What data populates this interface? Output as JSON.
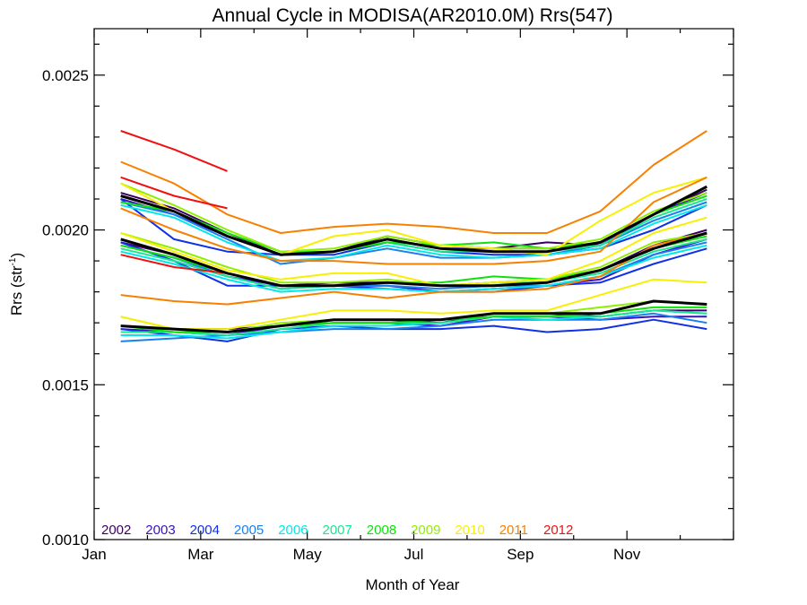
{
  "chart_data": {
    "type": "line",
    "title": "Annual Cycle in MODISA(AR2010.0M) Rrs(547)",
    "xlabel": "Month of Year",
    "ylabel": {
      "base": "Rrs (str",
      "sup": "-1",
      "close": ")"
    },
    "x_month_ticks": [
      "Jan",
      "Mar",
      "May",
      "Jul",
      "Sep",
      "Nov"
    ],
    "x_month_values": [
      1,
      3,
      5,
      7,
      9,
      11
    ],
    "xlim": [
      1,
      13
    ],
    "ylim": [
      0.001,
      0.00265
    ],
    "y_ticks": [
      0.001,
      0.0015,
      0.002,
      0.0025
    ],
    "y_tick_labels": [
      "0.0010",
      "0.0015",
      "0.0020",
      "0.0025"
    ],
    "x": [
      1.5,
      2.5,
      3.5,
      4.5,
      5.5,
      6.5,
      7.5,
      8.5,
      9.5,
      10.5,
      11.5,
      12.5
    ],
    "legend": {
      "placement": "bottom-left"
    },
    "series": [
      {
        "name": "2002",
        "color": "#3a0060",
        "values": [
          [
            0.00212,
            0.00207,
            0.00199,
            0.00192,
            0.00193,
            0.00198,
            0.00195,
            0.00194,
            0.00196,
            0.00195,
            0.00205,
            0.00213
          ],
          [
            0.00196,
            0.00192,
            0.00186,
            0.00182,
            0.00183,
            0.00183,
            0.00182,
            0.00183,
            0.00184,
            0.00187,
            0.00195,
            0.002
          ],
          [
            0.00169,
            0.00168,
            0.00168,
            0.00169,
            0.00171,
            0.00171,
            0.0017,
            0.00173,
            0.00173,
            0.00172,
            0.00174,
            0.00174
          ]
        ]
      },
      {
        "name": "2003",
        "color": "#3a10c0",
        "values": [
          [
            0.0021,
            0.00205,
            0.00198,
            0.00192,
            0.00193,
            0.00197,
            0.00194,
            0.00194,
            0.00194,
            0.00195,
            0.00205,
            0.00212
          ],
          [
            0.00196,
            0.0019,
            0.00185,
            0.00182,
            0.00182,
            0.00182,
            0.0018,
            0.00181,
            0.00182,
            0.00184,
            0.00192,
            0.00197
          ],
          [
            0.00168,
            0.00167,
            0.00166,
            0.00169,
            0.0017,
            0.0017,
            0.00169,
            0.00172,
            0.00172,
            0.00171,
            0.00172,
            0.00172
          ]
        ]
      },
      {
        "name": "2004",
        "color": "#1030e8",
        "values": [
          [
            0.0021,
            0.00197,
            0.00193,
            0.00192,
            0.00192,
            0.00196,
            0.00193,
            0.00192,
            0.00192,
            0.00194,
            0.002,
            0.00208
          ],
          [
            0.00196,
            0.0019,
            0.00182,
            0.00182,
            0.00182,
            0.00181,
            0.0018,
            0.0018,
            0.00182,
            0.00183,
            0.00189,
            0.00194
          ],
          [
            0.00168,
            0.00166,
            0.00164,
            0.00168,
            0.00169,
            0.00168,
            0.00168,
            0.00169,
            0.00167,
            0.00168,
            0.00171,
            0.00168
          ]
        ]
      },
      {
        "name": "2005",
        "color": "#1880f0",
        "values": [
          [
            0.00209,
            0.00205,
            0.00197,
            0.00189,
            0.00191,
            0.00194,
            0.00191,
            0.00191,
            0.00192,
            0.00195,
            0.00203,
            0.00209
          ],
          [
            0.00195,
            0.00191,
            0.00185,
            0.00181,
            0.00182,
            0.00182,
            0.00181,
            0.00182,
            0.00182,
            0.00185,
            0.00192,
            0.00196
          ],
          [
            0.00164,
            0.00165,
            0.00166,
            0.00167,
            0.00168,
            0.00168,
            0.00169,
            0.00171,
            0.00171,
            0.00171,
            0.00173,
            0.0017
          ]
        ]
      },
      {
        "name": "2006",
        "color": "#00e8e8",
        "values": [
          [
            0.00208,
            0.00204,
            0.00196,
            0.0019,
            0.00191,
            0.00195,
            0.00192,
            0.00191,
            0.00192,
            0.00194,
            0.00202,
            0.00208
          ],
          [
            0.00193,
            0.00189,
            0.00184,
            0.0018,
            0.00181,
            0.00181,
            0.0018,
            0.00181,
            0.00182,
            0.00185,
            0.00191,
            0.00195
          ],
          [
            0.00166,
            0.00166,
            0.00165,
            0.00167,
            0.00169,
            0.00169,
            0.0017,
            0.00172,
            0.00171,
            0.00172,
            0.00174,
            0.00173
          ]
        ]
      },
      {
        "name": "2007",
        "color": "#18e890",
        "values": [
          [
            0.00209,
            0.00206,
            0.00198,
            0.00192,
            0.00193,
            0.00196,
            0.00193,
            0.00193,
            0.00193,
            0.00195,
            0.00204,
            0.0021
          ],
          [
            0.00194,
            0.0019,
            0.00185,
            0.00181,
            0.00182,
            0.00183,
            0.00182,
            0.00183,
            0.00183,
            0.00186,
            0.00193,
            0.00197
          ],
          [
            0.00167,
            0.00167,
            0.00166,
            0.00168,
            0.0017,
            0.0017,
            0.0017,
            0.00172,
            0.00172,
            0.00172,
            0.00174,
            0.00173
          ]
        ]
      },
      {
        "name": "2008",
        "color": "#10e010",
        "values": [
          [
            0.00209,
            0.00206,
            0.00199,
            0.00193,
            0.00193,
            0.00196,
            0.00195,
            0.00196,
            0.00194,
            0.00196,
            0.00205,
            0.00211
          ],
          [
            0.00195,
            0.00191,
            0.00186,
            0.00182,
            0.00182,
            0.00183,
            0.00183,
            0.00185,
            0.00184,
            0.00187,
            0.00194,
            0.00198
          ],
          [
            0.00169,
            0.00167,
            0.00167,
            0.00169,
            0.0017,
            0.0017,
            0.00171,
            0.00172,
            0.00172,
            0.00173,
            0.00175,
            0.00175
          ]
        ]
      },
      {
        "name": "2009",
        "color": "#90ee00",
        "values": [
          [
            0.00215,
            0.00208,
            0.002,
            0.00193,
            0.00194,
            0.00198,
            0.00195,
            0.00194,
            0.00194,
            0.00197,
            0.00206,
            0.00212
          ],
          [
            0.00199,
            0.00194,
            0.00188,
            0.00183,
            0.00183,
            0.00184,
            0.00182,
            0.00183,
            0.00184,
            0.00188,
            0.00196,
            0.00199
          ],
          [
            0.00172,
            0.00168,
            0.00167,
            0.0017,
            0.00171,
            0.00171,
            0.00171,
            0.00173,
            0.00173,
            0.00175,
            0.00177,
            0.00176
          ]
        ]
      },
      {
        "name": "2010",
        "color": "#f8f000",
        "values": [
          [
            0.00215,
            0.00206,
            0.00198,
            0.00192,
            0.00198,
            0.002,
            0.00195,
            0.00194,
            0.00192,
            0.00203,
            0.00212,
            0.00217
          ],
          [
            0.00199,
            0.00193,
            0.00187,
            0.00184,
            0.00186,
            0.00186,
            0.00182,
            0.00183,
            0.00184,
            0.0019,
            0.00199,
            0.00204
          ],
          [
            0.00172,
            0.00168,
            0.00168,
            0.00171,
            0.00174,
            0.00174,
            0.00173,
            0.00174,
            0.00174,
            0.00179,
            0.00184,
            0.00183
          ]
        ]
      },
      {
        "name": "2011",
        "color": "#f88000",
        "values": [
          [
            0.00222,
            0.00215,
            0.00205,
            0.00199,
            0.00201,
            0.00202,
            0.00201,
            0.00199,
            0.00199,
            0.00206,
            0.00221,
            0.00232
          ],
          [
            0.00207,
            0.002,
            0.00194,
            0.0019,
            0.0019,
            0.00189,
            0.00189,
            0.00189,
            0.0019,
            0.00193,
            0.00209,
            0.00217
          ],
          [
            0.00179,
            0.00177,
            0.00176,
            0.00178,
            0.0018,
            0.00178,
            0.0018,
            0.0018,
            0.00181,
            0.00185,
            0.00195,
            0.00199
          ]
        ]
      },
      {
        "name": "2012",
        "color": "#f01010",
        "values": [
          [
            0.00232,
            0.00226,
            0.00219
          ],
          [
            0.00217,
            0.00211,
            0.00207
          ],
          [
            0.00192,
            0.00188,
            0.00186
          ]
        ]
      },
      {
        "name": "",
        "color": "#000000",
        "values": [
          [
            0.00211,
            0.00206,
            0.00198,
            0.00192,
            0.00193,
            0.00197,
            0.00194,
            0.00193,
            0.00193,
            0.00196,
            0.00205,
            0.00214
          ],
          [
            0.00197,
            0.00192,
            0.00186,
            0.00182,
            0.00182,
            0.00183,
            0.00182,
            0.00182,
            0.00183,
            0.00187,
            0.00194,
            0.00199
          ],
          [
            0.00169,
            0.00168,
            0.00167,
            0.00169,
            0.00171,
            0.00171,
            0.00171,
            0.00173,
            0.00173,
            0.00173,
            0.00177,
            0.00176
          ]
        ]
      }
    ]
  }
}
